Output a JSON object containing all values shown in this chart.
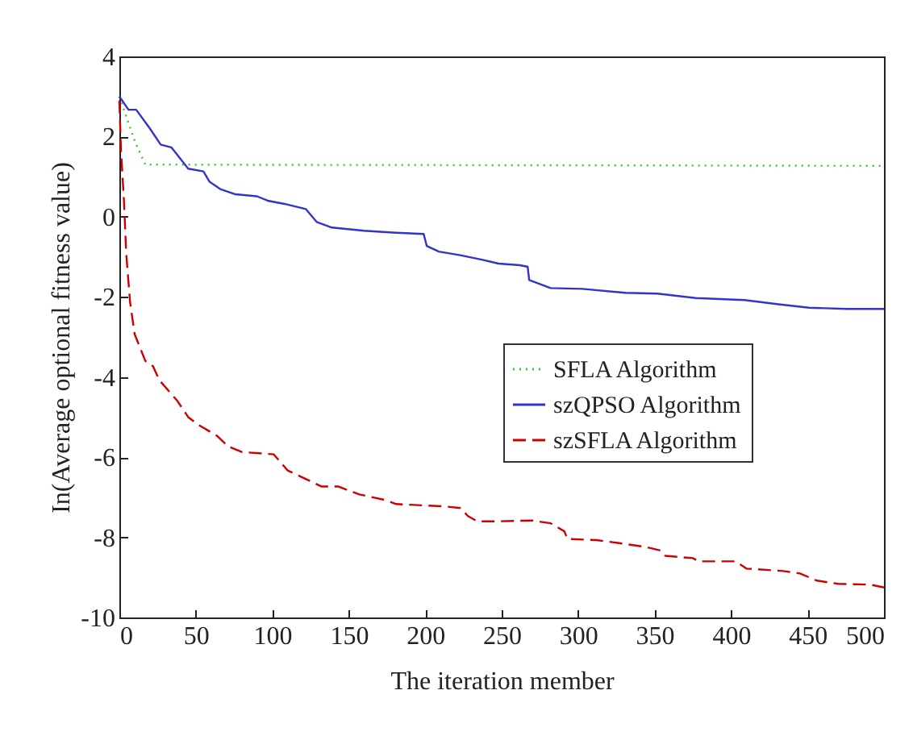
{
  "chart_data": {
    "type": "line",
    "xlabel": "The iteration member",
    "ylabel": "In(Average optional fitness value)",
    "xlim": [
      0,
      500
    ],
    "xticks": [
      0,
      50,
      100,
      150,
      200,
      250,
      300,
      350,
      400,
      450,
      500
    ],
    "ylim": [
      -10,
      4
    ],
    "yticks": [
      -10,
      -8,
      -6,
      -4,
      -2,
      0,
      2,
      4
    ],
    "grid": false,
    "legend": "right",
    "marker": "none",
    "series": [
      {
        "name": "SFLA Algorithm",
        "color": "#33cc33",
        "line_style": "dotted",
        "x": [
          0,
          6,
          11,
          17,
          500
        ],
        "values": [
          3.0,
          2.33,
          1.8,
          1.3,
          1.27
        ]
      },
      {
        "name": "szQPSO Algorithm",
        "color": "#3333cc",
        "line_style": "solid",
        "x": [
          0,
          6,
          11,
          20,
          27,
          34,
          45,
          55,
          59,
          66,
          76,
          90,
          97,
          108,
          122,
          129,
          139,
          160,
          181,
          199,
          201,
          209,
          223,
          237,
          248,
          262,
          267,
          268,
          282,
          303,
          331,
          352,
          377,
          409,
          430,
          451,
          476,
          500
        ],
        "values": [
          3.0,
          2.67,
          2.67,
          2.2,
          1.8,
          1.73,
          1.2,
          1.13,
          0.87,
          0.69,
          0.56,
          0.51,
          0.4,
          0.32,
          0.19,
          -0.13,
          -0.27,
          -0.35,
          -0.4,
          -0.43,
          -0.73,
          -0.87,
          -0.96,
          -1.07,
          -1.17,
          -1.21,
          -1.25,
          -1.58,
          -1.78,
          -1.8,
          -1.9,
          -1.92,
          -2.03,
          -2.08,
          -2.18,
          -2.27,
          -2.3,
          -2.3
        ]
      },
      {
        "name": "szSFLA Algorithm",
        "color": "#cc0000",
        "line_style": "dashed",
        "x": [
          0,
          1,
          3,
          4.5,
          7,
          10,
          17,
          22,
          26,
          38,
          45,
          52,
          64,
          71,
          80,
          101,
          110,
          125,
          132,
          143,
          157,
          174,
          181,
          213,
          223,
          228,
          234,
          248,
          270,
          282,
          291,
          293,
          312,
          326,
          344,
          354,
          357,
          375,
          379,
          403,
          410,
          434,
          445,
          456,
          470,
          491,
          500
        ],
        "values": [
          2.9,
          1.7,
          0.4,
          -0.93,
          -2.13,
          -2.93,
          -3.6,
          -3.73,
          -4.07,
          -4.6,
          -5.0,
          -5.2,
          -5.47,
          -5.73,
          -5.87,
          -5.93,
          -6.33,
          -6.6,
          -6.73,
          -6.73,
          -6.93,
          -7.07,
          -7.17,
          -7.23,
          -7.27,
          -7.47,
          -7.6,
          -7.6,
          -7.58,
          -7.65,
          -7.85,
          -8.04,
          -8.07,
          -8.14,
          -8.24,
          -8.33,
          -8.46,
          -8.52,
          -8.6,
          -8.6,
          -8.78,
          -8.84,
          -8.9,
          -9.08,
          -9.16,
          -9.18,
          -9.25
        ]
      }
    ]
  }
}
